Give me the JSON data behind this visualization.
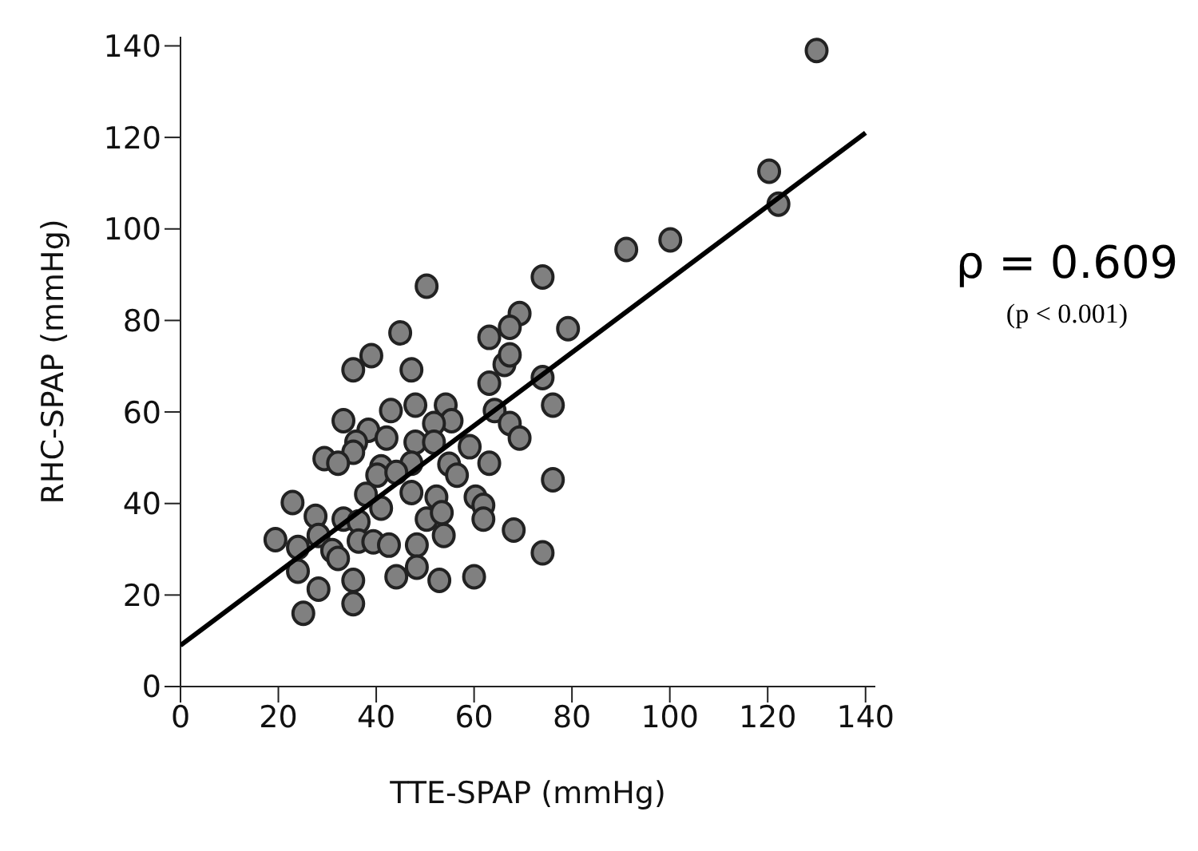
{
  "chart_data": {
    "type": "scatter",
    "xlabel": "TTE-SPAP (mmHg)",
    "ylabel": "RHC-SPAP (mmHg)",
    "xlim": [
      0,
      142
    ],
    "xticks": [
      0,
      20,
      40,
      60,
      80,
      100,
      120,
      140
    ],
    "ylim": [
      0,
      142
    ],
    "yticks": [
      0,
      20,
      40,
      60,
      80,
      100,
      120,
      140
    ],
    "grid": false,
    "annotations": [
      "ρ = 0.609",
      "(p < 0.001)"
    ],
    "series": [
      {
        "marker": "circle",
        "color": "#808080",
        "x": [
          130,
          50.3,
          74,
          91.1,
          100.1,
          120.3,
          122.2,
          69.3,
          67.3,
          63.1,
          79.2,
          44.9,
          39,
          35.3,
          47.2,
          66.2,
          67.3,
          63.1,
          74,
          76.1,
          64.2,
          67.3,
          69.3,
          43,
          48,
          54.2,
          55.4,
          51.8,
          33.3,
          38.4,
          35.9,
          42.1,
          48,
          51.8,
          59.1,
          29.4,
          35.3,
          32.2,
          41,
          47.2,
          54.9,
          63.1,
          40.2,
          44.1,
          56.5,
          76.1,
          22.9,
          37.9,
          47.2,
          52.3,
          60.3,
          61.9,
          27.6,
          33.3,
          36.4,
          41,
          50.3,
          53.4,
          61.9,
          19.4,
          28.2,
          24,
          31,
          36.4,
          39.4,
          42.6,
          48.3,
          53.8,
          68.1,
          74,
          32.2,
          24,
          35.3,
          28.2,
          44.1,
          48.3,
          52.9,
          60,
          35.3,
          25.1
        ],
        "values": [
          139,
          87.5,
          89.5,
          95.5,
          97.6,
          112.6,
          105.4,
          81.5,
          78.5,
          76.3,
          78.2,
          77.3,
          72.3,
          69.2,
          69.2,
          70.4,
          72.5,
          66.3,
          67.5,
          61.5,
          60.3,
          57.5,
          54.3,
          60.3,
          61.5,
          61.5,
          58.1,
          57.5,
          58.1,
          56,
          53.4,
          54.3,
          53.4,
          53.4,
          52.4,
          49.8,
          51.2,
          48.8,
          48,
          48.8,
          48.6,
          48.8,
          46.2,
          46.8,
          46.2,
          45.2,
          40.2,
          42,
          42.4,
          41.4,
          41.4,
          39.6,
          37.2,
          36.6,
          36,
          39,
          36.6,
          38,
          36.6,
          32.1,
          33,
          30.4,
          29.7,
          31.8,
          31.6,
          30.9,
          30.9,
          33,
          34.2,
          29.2,
          28,
          25.2,
          23.2,
          21.3,
          24,
          26.1,
          23.2,
          24,
          18.1,
          16
        ]
      },
      {
        "type": "line",
        "marker": "none",
        "color": "#000000",
        "x": [
          0,
          140
        ],
        "values": [
          9,
          121
        ]
      }
    ]
  }
}
